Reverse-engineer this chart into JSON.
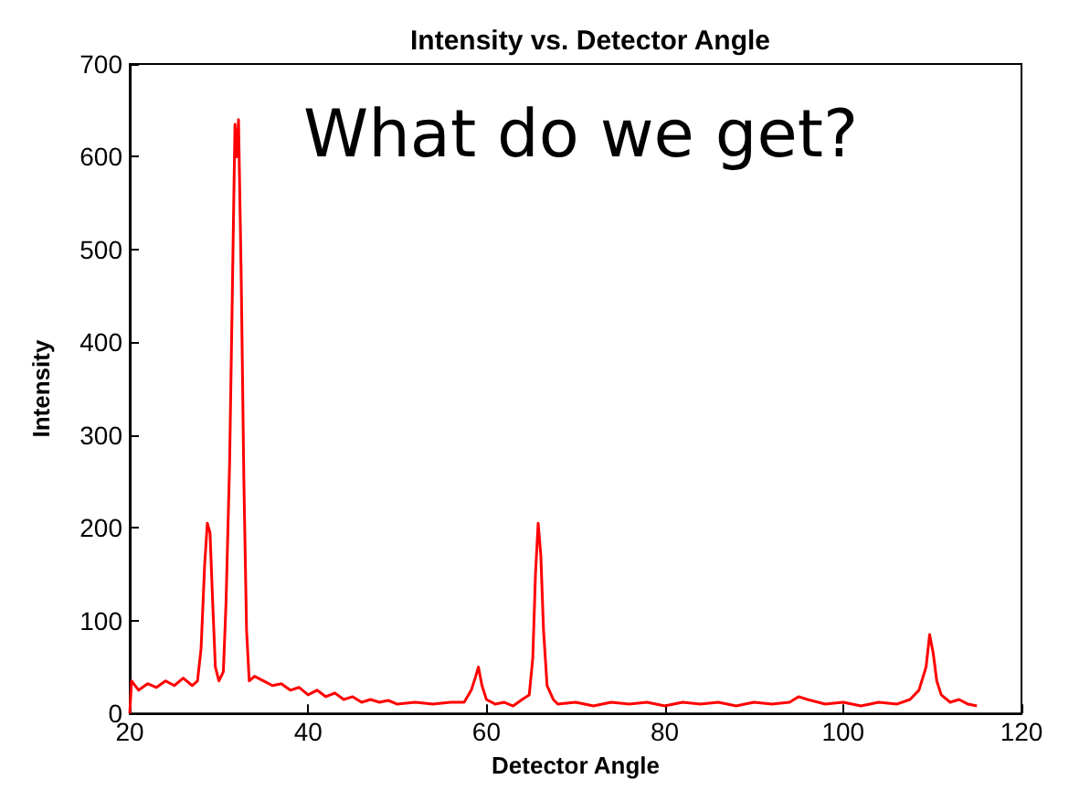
{
  "chart_data": {
    "type": "line",
    "title": "Intensity vs. Detector Angle",
    "xlabel": "Detector Angle",
    "ylabel": "Intensity",
    "annotations": [
      "What do we get?"
    ],
    "xlim": [
      20,
      120
    ],
    "xticks": [
      20,
      40,
      60,
      80,
      100,
      120
    ],
    "ylim": [
      0,
      700
    ],
    "yticks": [
      0,
      100,
      200,
      300,
      400,
      500,
      600,
      700
    ],
    "grid": false,
    "marker": "none",
    "line_style": "solid",
    "series": [
      {
        "color": "#ff0000",
        "x": [
          20,
          20.2,
          21,
          22,
          23,
          24,
          25,
          26,
          27,
          27.6,
          28,
          28.4,
          28.7,
          29,
          29.3,
          29.6,
          30,
          30.5,
          30.8,
          31.2,
          31.5,
          31.8,
          32,
          32.2,
          32.5,
          32.8,
          33.1,
          33.4,
          34,
          35,
          36,
          37,
          38,
          39,
          40,
          41,
          42,
          43,
          44,
          45,
          46,
          47,
          48,
          49,
          50,
          52,
          54,
          56,
          57.5,
          58.3,
          58.8,
          59.1,
          59.5,
          60,
          61,
          62,
          63,
          64,
          64.8,
          65.2,
          65.5,
          65.8,
          66.1,
          66.4,
          66.8,
          67.5,
          68,
          70,
          72,
          74,
          76,
          78,
          80,
          82,
          84,
          86,
          88,
          90,
          92,
          94,
          95,
          96,
          98,
          100,
          102,
          104,
          106,
          107.5,
          108.5,
          109.3,
          109.7,
          110.1,
          110.5,
          111,
          112,
          113,
          114,
          115
        ],
        "values": [
          0,
          35,
          25,
          32,
          28,
          35,
          30,
          38,
          30,
          35,
          70,
          160,
          205,
          195,
          120,
          50,
          35,
          45,
          120,
          270,
          450,
          635,
          600,
          640,
          470,
          250,
          90,
          35,
          40,
          35,
          30,
          32,
          25,
          28,
          20,
          25,
          18,
          22,
          15,
          18,
          12,
          15,
          12,
          14,
          10,
          12,
          10,
          12,
          12,
          25,
          40,
          50,
          30,
          15,
          10,
          12,
          8,
          15,
          20,
          60,
          150,
          205,
          170,
          90,
          30,
          15,
          10,
          12,
          8,
          12,
          10,
          12,
          8,
          12,
          10,
          12,
          8,
          12,
          10,
          12,
          18,
          15,
          10,
          12,
          8,
          12,
          10,
          15,
          25,
          50,
          85,
          65,
          35,
          20,
          12,
          15,
          10,
          8
        ]
      }
    ]
  }
}
